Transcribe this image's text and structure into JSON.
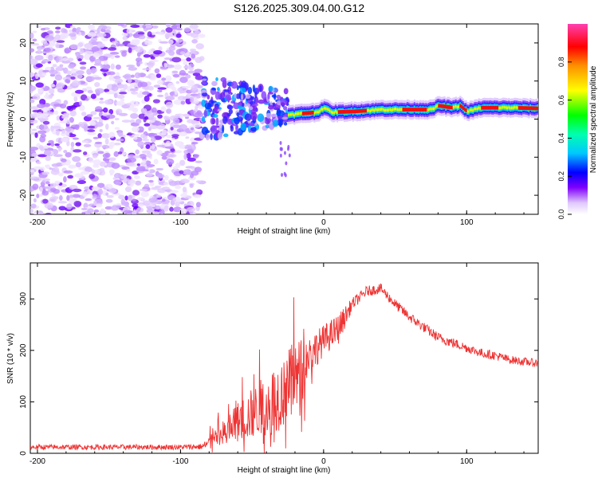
{
  "chart_data": [
    {
      "type": "heatmap",
      "title": "S126.2025.309.04.00.G12",
      "xlabel": "Height of straight line (km)",
      "ylabel": "Frequency (Hz)",
      "xlim": [
        -205,
        150
      ],
      "ylim": [
        -25,
        25
      ],
      "xticks": [
        -200,
        -100,
        0,
        100
      ],
      "yticks": [
        -20,
        -10,
        0,
        10,
        20
      ],
      "xtick_labels": [
        "-200",
        "-100",
        "0",
        "100"
      ],
      "ytick_labels": [
        "-20",
        "-10",
        "0",
        "10",
        "20"
      ],
      "colorbar": {
        "label": "Normalized spectral amplitude",
        "range": [
          0,
          1
        ],
        "ticks": [
          0,
          0.2,
          0.4,
          0.6,
          0.8
        ],
        "tick_labels": [
          "0.0",
          "0.2",
          "0.4",
          "0.6",
          "0.8"
        ]
      },
      "regions": [
        {
          "name": "noise",
          "x": [
            -205,
            -85
          ],
          "y": [
            -25,
            25
          ],
          "amplitude": 0.2
        },
        {
          "name": "transition",
          "x": [
            -85,
            -25
          ],
          "y": [
            -5,
            12
          ],
          "amplitude": 0.35
        },
        {
          "name": "signal-line",
          "x": [
            -25,
            150
          ],
          "y": [
            1,
            4
          ],
          "amplitude": 0.95
        }
      ],
      "signal_track": {
        "x": [
          -25,
          -15,
          -5,
          0,
          5,
          20,
          40,
          60,
          75,
          80,
          90,
          95,
          100,
          110,
          130,
          150
        ],
        "freq": [
          1,
          1.5,
          1.8,
          3,
          1.8,
          2,
          2.5,
          2.5,
          2.5,
          3.5,
          3,
          3.5,
          2,
          3,
          3,
          2.8
        ]
      }
    },
    {
      "type": "line",
      "xlabel": "Height of straight line (km)",
      "ylabel": "SNR (10 * v/v)",
      "xlim": [
        -205,
        150
      ],
      "ylim": [
        0,
        370
      ],
      "xticks": [
        -200,
        -100,
        0,
        100
      ],
      "yticks": [
        0,
        100,
        200,
        300
      ],
      "xtick_labels": [
        "-200",
        "-100",
        "0",
        "100"
      ],
      "ytick_labels": [
        "0",
        "100",
        "200",
        "300"
      ],
      "series": [
        {
          "name": "SNR",
          "color": "#ee3333",
          "x": [
            -205,
            -150,
            -100,
            -85,
            -75,
            -60,
            -45,
            -30,
            -20,
            -10,
            0,
            10,
            20,
            30,
            40,
            50,
            60,
            70,
            80,
            90,
            100,
            110,
            120,
            130,
            140,
            150
          ],
          "mean": [
            12,
            12,
            12,
            13,
            25,
            60,
            85,
            115,
            140,
            190,
            220,
            240,
            290,
            315,
            320,
            290,
            265,
            245,
            225,
            215,
            205,
            195,
            190,
            182,
            178,
            175
          ],
          "amp": [
            5,
            5,
            5,
            6,
            22,
            40,
            55,
            70,
            80,
            40,
            30,
            30,
            12,
            10,
            10,
            10,
            10,
            10,
            10,
            10,
            9,
            9,
            9,
            8,
            8,
            8
          ]
        }
      ]
    }
  ]
}
